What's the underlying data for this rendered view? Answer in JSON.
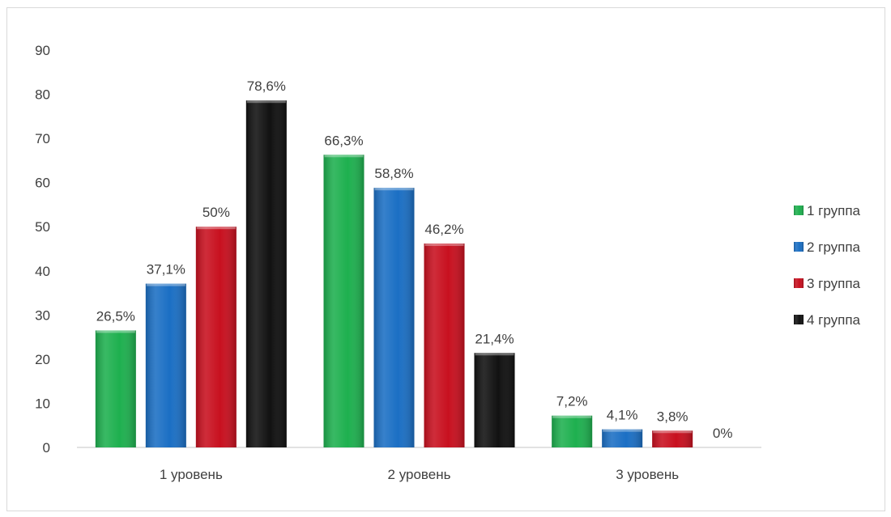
{
  "chart_data": {
    "type": "bar",
    "title": "",
    "xlabel": "",
    "ylabel": "",
    "ylim": [
      0,
      90
    ],
    "yticks": [
      0,
      10,
      20,
      30,
      40,
      50,
      60,
      70,
      80,
      90
    ],
    "grid": false,
    "legend_position": "right",
    "categories": [
      "1 уровень",
      "2 уровень",
      "3 уровень"
    ],
    "series": [
      {
        "name": "1 группа",
        "color": "#1eb04f",
        "values": [
          26.5,
          66.3,
          7.2
        ],
        "labels": [
          "26,5%",
          "66,3%",
          "7,2%"
        ]
      },
      {
        "name": "2 группа",
        "color": "#1b6fc4",
        "values": [
          37.1,
          58.8,
          4.1
        ],
        "labels": [
          "37,1%",
          "58,8%",
          "4,1%"
        ]
      },
      {
        "name": "3 группа",
        "color": "#c8101f",
        "values": [
          50,
          46.2,
          3.8
        ],
        "labels": [
          "50%",
          "46,2%",
          "3,8%"
        ]
      },
      {
        "name": "4 группа",
        "color": "#111111",
        "values": [
          78.6,
          21.4,
          0
        ],
        "labels": [
          "78,6%",
          "21,4%",
          "0%"
        ]
      }
    ]
  }
}
